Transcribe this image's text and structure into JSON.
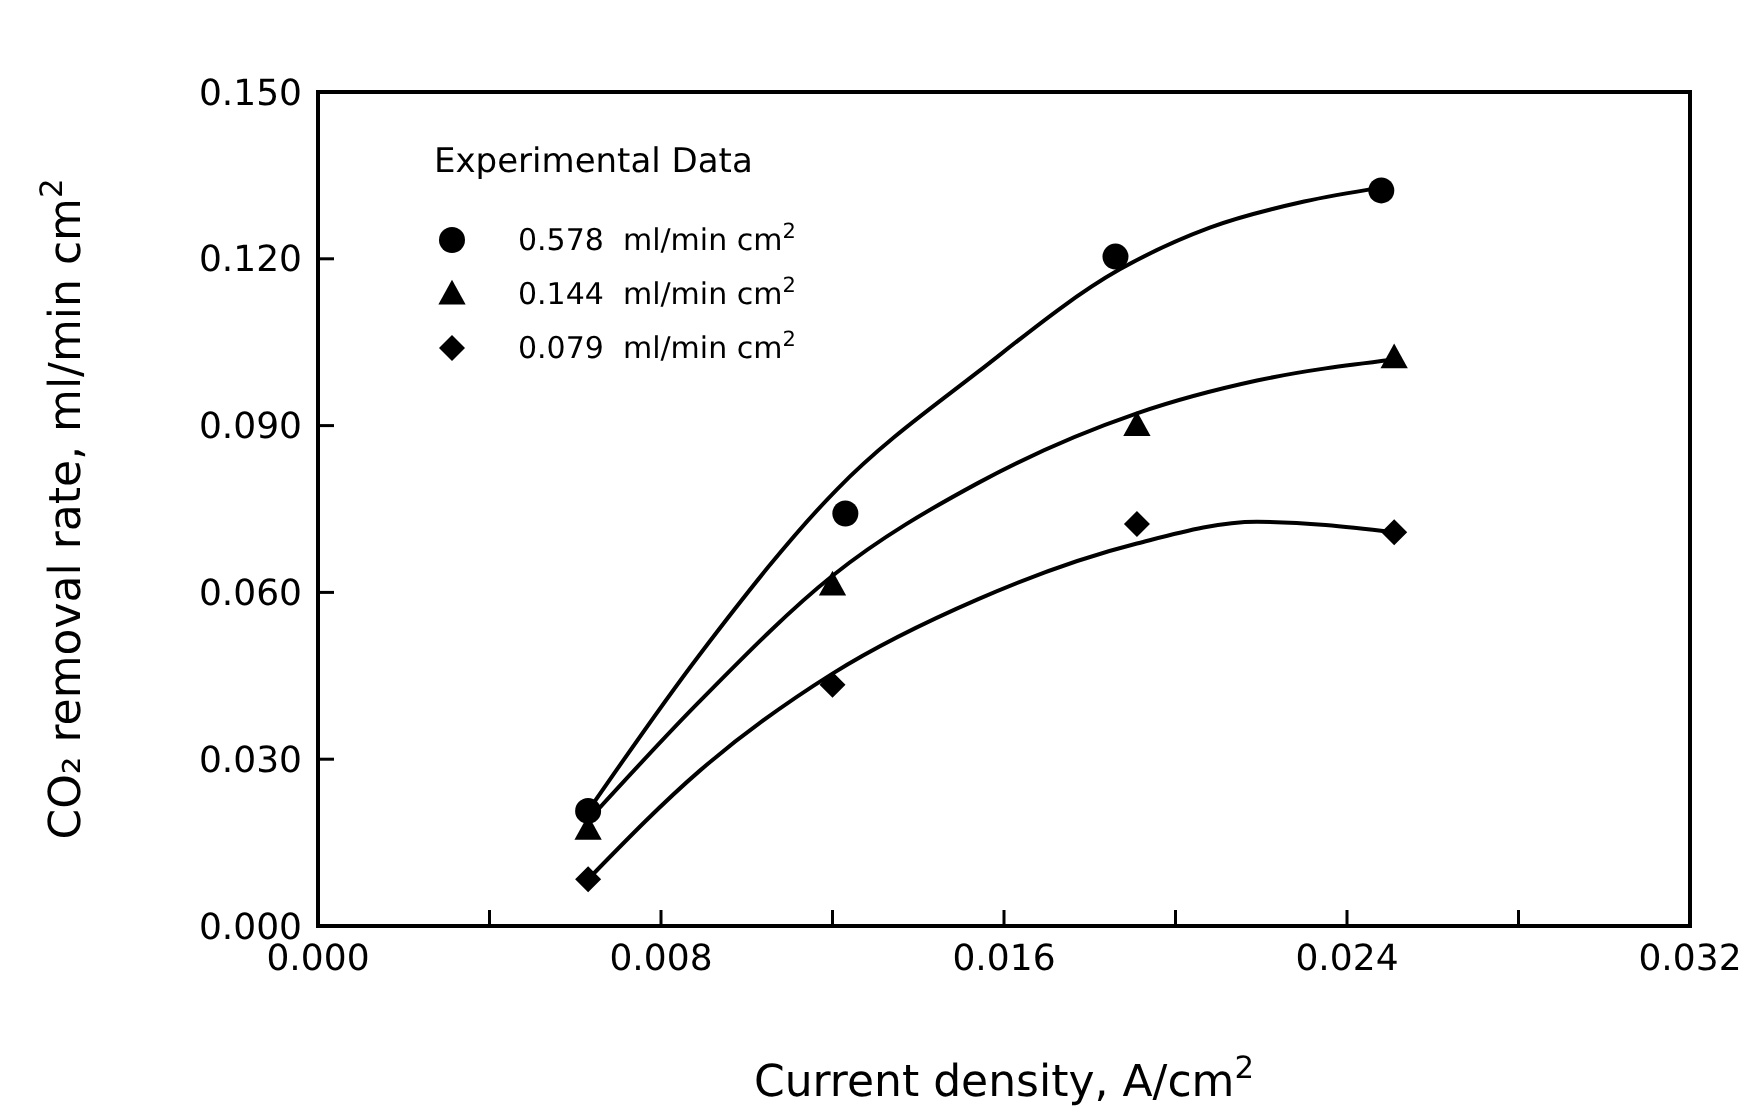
{
  "chart_data": {
    "type": "scatter",
    "xlabel": "Current density, A/cm$^{2}$",
    "ylabel": "CO₂ removal rate, ml/min cm$^{2}$",
    "legend_title": "Experimental Data",
    "legend": "top left",
    "grid": false,
    "xlim": [
      0,
      0.032
    ],
    "xticks": [
      {
        "value": 0,
        "label": "0.000"
      },
      {
        "value": 0.004,
        "label": null
      },
      {
        "value": 0.008,
        "label": "0.008"
      },
      {
        "value": 0.012,
        "label": null
      },
      {
        "value": 0.016,
        "label": "0.016"
      },
      {
        "value": 0.02,
        "label": null
      },
      {
        "value": 0.024,
        "label": "0.024"
      },
      {
        "value": 0.028,
        "label": null
      },
      {
        "value": 0.032,
        "label": "0.032"
      }
    ],
    "ylim": [
      0,
      0.15
    ],
    "yticks": [
      {
        "value": 0,
        "label": "0.000"
      },
      {
        "value": 0.03,
        "label": "0.030"
      },
      {
        "value": 0.06,
        "label": "0.060"
      },
      {
        "value": 0.09,
        "label": "0.090"
      },
      {
        "value": 0.12,
        "label": "0.120"
      },
      {
        "value": 0.15,
        "label": "0.150"
      }
    ],
    "series": [
      {
        "name": "0.578  ml/min cm$^{2}$",
        "color": "#000000",
        "marker": "circle",
        "x": [
          0.0063,
          0.0123,
          0.0186,
          0.0248
        ],
        "values": [
          0.0207,
          0.0742,
          0.1204,
          0.1323
        ]
      },
      {
        "name": "0.144  ml/min cm$^{2}$",
        "color": "#000000",
        "marker": "triangle",
        "x": [
          0.0063,
          0.012,
          0.0191,
          0.0251
        ],
        "values": [
          0.0174,
          0.0613,
          0.09,
          0.1022
        ]
      },
      {
        "name": "0.079  ml/min cm$^{2}$",
        "color": "#000000",
        "marker": "diamond",
        "x": [
          0.0063,
          0.012,
          0.0191,
          0.0251
        ],
        "values": [
          0.0084,
          0.0434,
          0.0723,
          0.0708
        ]
      },
      {
        "type": "line",
        "color": "#000000",
        "marker": "none",
        "line_style": "solid",
        "x": [
          0.0063,
          0.0089,
          0.0121,
          0.0154,
          0.0187,
          0.0208,
          0.023,
          0.0248
        ],
        "values": [
          0.0207,
          0.0488,
          0.0785,
          0.0997,
          0.1181,
          0.1256,
          0.1303,
          0.1328
        ]
      },
      {
        "type": "line",
        "color": "#000000",
        "marker": "none",
        "line_style": "solid",
        "x": [
          0.0063,
          0.0089,
          0.012,
          0.0154,
          0.0191,
          0.0219,
          0.0251
        ],
        "values": [
          0.019,
          0.0404,
          0.063,
          0.0797,
          0.0922,
          0.0981,
          0.1019
        ]
      },
      {
        "type": "line",
        "color": "#000000",
        "marker": "none",
        "line_style": "solid",
        "x": [
          0.0063,
          0.0089,
          0.012,
          0.0154,
          0.0191,
          0.0219,
          0.0251
        ],
        "values": [
          0.0084,
          0.0279,
          0.0454,
          0.0588,
          0.0688,
          0.0727,
          0.0708
        ]
      }
    ]
  }
}
